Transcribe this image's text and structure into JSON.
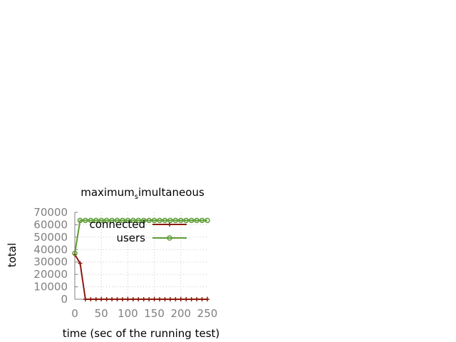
{
  "chart_data": {
    "type": "line",
    "title_main": "maximum",
    "title_sub": "s",
    "title_rest": "imultaneous",
    "xlabel": "time (sec of the running test)",
    "ylabel": "total",
    "xlim": [
      0,
      250
    ],
    "ylim": [
      0,
      70000
    ],
    "x_ticks": [
      "0",
      "50",
      "100",
      "150",
      "200",
      "250"
    ],
    "y_ticks": [
      "0",
      "10000",
      "20000",
      "30000",
      "40000",
      "50000",
      "60000",
      "70000"
    ],
    "grid": true,
    "legend_position": "top-right",
    "x": [
      0,
      10,
      20,
      30,
      40,
      50,
      60,
      70,
      80,
      90,
      100,
      110,
      120,
      130,
      140,
      150,
      160,
      170,
      180,
      190,
      200,
      210,
      220,
      230,
      240,
      250
    ],
    "series": [
      {
        "name": "connected",
        "color": "#8b1a0e",
        "marker": "plus",
        "values": [
          36000,
          29000,
          0,
          0,
          0,
          0,
          0,
          0,
          0,
          0,
          0,
          0,
          0,
          0,
          0,
          0,
          0,
          0,
          0,
          0,
          0,
          0,
          0,
          0,
          0,
          0
        ]
      },
      {
        "name": "users",
        "color": "#5e9c36",
        "marker": "circle",
        "values": [
          37000,
          63500,
          63500,
          63500,
          63500,
          63500,
          63500,
          63500,
          63500,
          63500,
          63500,
          63500,
          63500,
          63500,
          63500,
          63500,
          63500,
          63500,
          63500,
          63500,
          63500,
          63500,
          63500,
          63500,
          63500,
          63500
        ]
      }
    ]
  }
}
